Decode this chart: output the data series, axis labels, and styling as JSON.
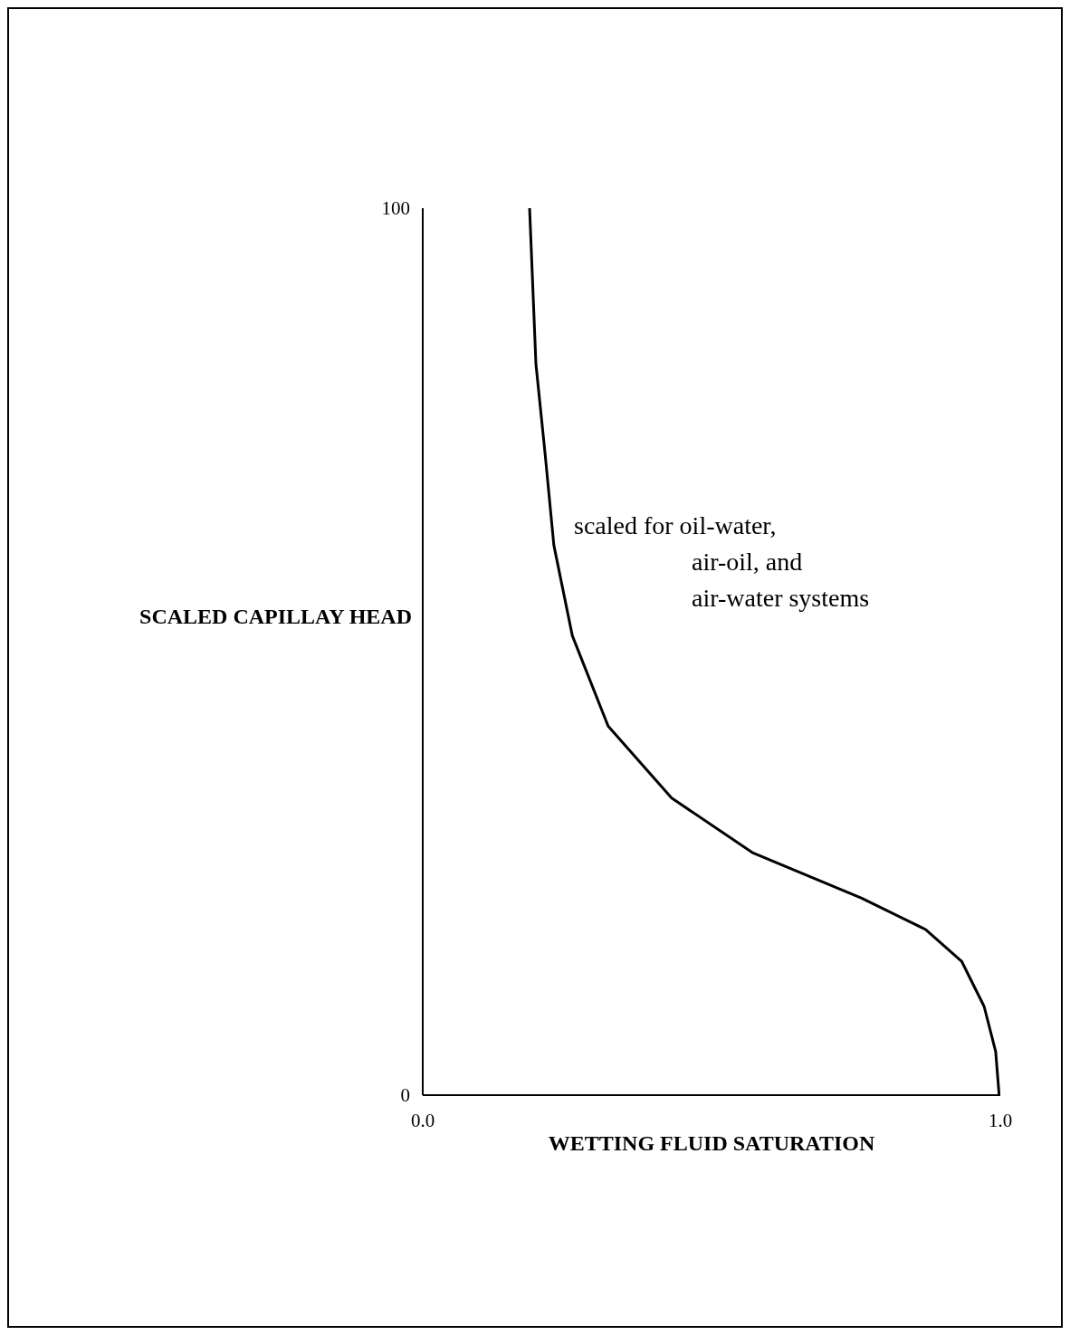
{
  "chart_data": {
    "type": "line",
    "xlabel": "WETTING FLUID SATURATION",
    "ylabel": "SCALED CAPILLAY HEAD",
    "annotations": [
      "scaled for oil-water,",
      "air-oil, and",
      "air-water systems"
    ],
    "x": [
      0.185,
      0.196,
      0.212,
      0.227,
      0.259,
      0.321,
      0.431,
      0.572,
      0.76,
      0.87,
      0.933,
      0.972,
      0.992,
      0.998
    ],
    "series": [
      {
        "color": "#000000",
        "values": [
          100,
          82.4,
          72.2,
          62.0,
          51.8,
          41.6,
          33.5,
          27.3,
          22.2,
          18.7,
          15.1,
          10.0,
          4.9,
          0
        ]
      }
    ],
    "xlim": [
      0,
      1
    ],
    "xticks": [
      {
        "value": 0,
        "label": "0.0"
      },
      {
        "value": 1,
        "label": "1.0"
      }
    ],
    "ylim": [
      0,
      100
    ],
    "yticks": [
      0,
      100
    ],
    "grid": false,
    "legend": false,
    "marker": "none",
    "line_style": "solid"
  }
}
